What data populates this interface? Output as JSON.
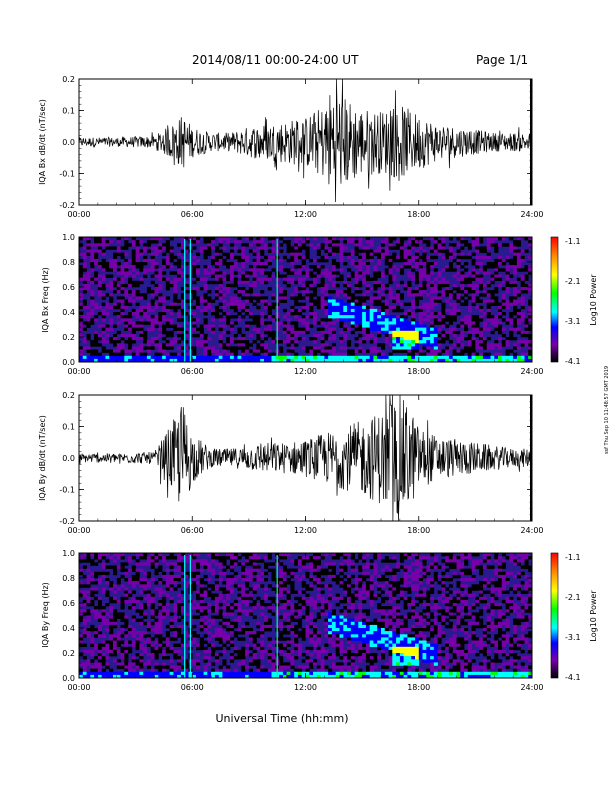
{
  "header": {
    "title": "2014/08/11  00:00-24:00 UT",
    "page": "Page 1/1"
  },
  "side_note": "ssf Thu Sep 10 11:48:57 GMT 2019",
  "footer": {
    "xlabel": "Universal Time (hh:mm)"
  },
  "colorbar": {
    "label": "Log10 Power",
    "ticks": [
      "-1.1",
      "-2.1",
      "-3.1",
      "-4.1"
    ],
    "colors": [
      "#ff0000",
      "#ff8800",
      "#ffff00",
      "#00ff00",
      "#00ffff",
      "#0000ff",
      "#7700aa",
      "#000000"
    ]
  },
  "chart_data": [
    {
      "type": "line",
      "ylabel": "IQA Bx dB/dt (nT/sec)",
      "ylim": [
        -0.2,
        0.2
      ],
      "yticks": [
        "0.2",
        "0.1",
        "0.0",
        "-0.1",
        "-0.2"
      ],
      "xticks": [
        "00:00",
        "06:00",
        "12:00",
        "18:00",
        "24:00"
      ],
      "envelope_hours": [
        0,
        2,
        4,
        5,
        5.5,
        6,
        7,
        8,
        9,
        10,
        11,
        12,
        13,
        13.5,
        14,
        15,
        16,
        17,
        18,
        19,
        20,
        21,
        22,
        23,
        24
      ],
      "envelope_amplitude": [
        0.015,
        0.015,
        0.02,
        0.06,
        0.09,
        0.05,
        0.03,
        0.03,
        0.05,
        0.06,
        0.07,
        0.08,
        0.12,
        0.2,
        0.15,
        0.11,
        0.1,
        0.12,
        0.09,
        0.06,
        0.05,
        0.04,
        0.03,
        0.03,
        0.03
      ]
    },
    {
      "type": "heatmap",
      "ylabel": "IQA Bx Freq (Hz)",
      "ylim": [
        0.0,
        1.0
      ],
      "yticks": [
        "1.0",
        "0.8",
        "0.6",
        "0.4",
        "0.2",
        "0.0"
      ],
      "xticks": [
        "00:00",
        "06:00",
        "12:00",
        "18:00",
        "24:00"
      ],
      "zlim": [
        -4.1,
        -1.1
      ]
    },
    {
      "type": "line",
      "ylabel": "IQA By dB/dt (nT/sec)",
      "ylim": [
        -0.2,
        0.2
      ],
      "yticks": [
        "0.2",
        "0.1",
        "0.0",
        "-0.1",
        "-0.2"
      ],
      "xticks": [
        "00:00",
        "06:00",
        "12:00",
        "18:00",
        "24:00"
      ],
      "envelope_hours": [
        0,
        2,
        4,
        5,
        5.5,
        6,
        7,
        8,
        9,
        10,
        11,
        12,
        13,
        14,
        15,
        16,
        16.5,
        17,
        17.5,
        18,
        19,
        20,
        21,
        22,
        23,
        24
      ],
      "envelope_amplitude": [
        0.015,
        0.015,
        0.02,
        0.12,
        0.18,
        0.08,
        0.03,
        0.03,
        0.04,
        0.05,
        0.05,
        0.06,
        0.08,
        0.1,
        0.12,
        0.15,
        0.19,
        0.2,
        0.17,
        0.1,
        0.07,
        0.06,
        0.05,
        0.04,
        0.03,
        0.03
      ]
    },
    {
      "type": "heatmap",
      "ylabel": "IQA By Freq (Hz)",
      "ylim": [
        0.0,
        1.0
      ],
      "yticks": [
        "1.0",
        "0.8",
        "0.6",
        "0.4",
        "0.2",
        "0.0"
      ],
      "xticks": [
        "00:00",
        "06:00",
        "12:00",
        "18:00",
        "24:00"
      ],
      "zlim": [
        -4.1,
        -1.1
      ]
    }
  ]
}
